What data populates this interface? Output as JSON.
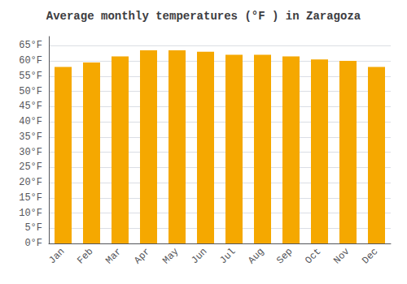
{
  "chart_data": {
    "type": "bar",
    "title": "Average monthly temperatures (°F ) in Zaragoza",
    "categories": [
      "Jan",
      "Feb",
      "Mar",
      "Apr",
      "May",
      "Jun",
      "Jul",
      "Aug",
      "Sep",
      "Oct",
      "Nov",
      "Dec"
    ],
    "values": [
      58,
      59.5,
      61.5,
      63.5,
      63.5,
      63,
      62,
      62,
      61.5,
      60.5,
      60,
      58
    ],
    "color": "#F5A800",
    "ylim": [
      0,
      68
    ],
    "yticks": [
      {
        "value": 0,
        "label": "0°F"
      },
      {
        "value": 5,
        "label": "5°F"
      },
      {
        "value": 10,
        "label": "10°F"
      },
      {
        "value": 15,
        "label": "15°F"
      },
      {
        "value": 20,
        "label": "20°F"
      },
      {
        "value": 25,
        "label": "25°F"
      },
      {
        "value": 30,
        "label": "30°F"
      },
      {
        "value": 35,
        "label": "35°F"
      },
      {
        "value": 40,
        "label": "40°F"
      },
      {
        "value": 45,
        "label": "45°F"
      },
      {
        "value": 50,
        "label": "50°F"
      },
      {
        "value": 55,
        "label": "55°F"
      },
      {
        "value": 60,
        "label": "60°F"
      },
      {
        "value": 65,
        "label": "65°F"
      }
    ],
    "grid": true
  }
}
